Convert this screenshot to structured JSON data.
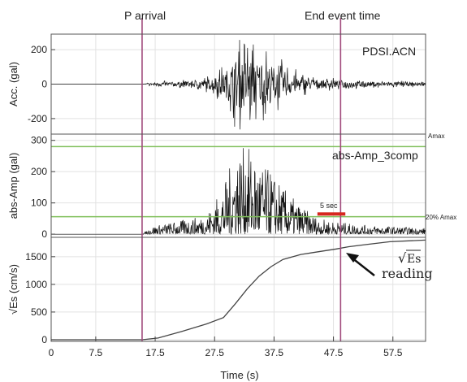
{
  "markers": {
    "p_arrival_label": "P arrival",
    "end_event_label": "End event time"
  },
  "annotations": {
    "station": "PDSI.ACN",
    "component": "abs-Amp_3comp",
    "amax": "Amax",
    "pct_amax": "20% Amax",
    "window": "5 sec",
    "sqrt_symbol": "√",
    "sqrt_es_label": "Es",
    "reading": "reading"
  },
  "chart_data": [
    {
      "type": "line",
      "panel": "acceleration",
      "ylabel": "Acc. (gal)",
      "ylim": [
        -290,
        290
      ],
      "yticks": [
        -200,
        0,
        200
      ],
      "xlim": [
        0,
        63
      ],
      "marker_lines_x": [
        15.3,
        48.7
      ],
      "series": [
        {
          "envelope": [
            [
              0,
              0
            ],
            [
              15.3,
              0
            ],
            [
              17,
              15
            ],
            [
              22,
              25
            ],
            [
              26,
              45
            ],
            [
              29,
              110
            ],
            [
              31,
              260
            ],
            [
              33,
              280
            ],
            [
              35,
              230
            ],
            [
              37,
              200
            ],
            [
              39,
              140
            ],
            [
              42,
              70
            ],
            [
              45,
              45
            ],
            [
              48,
              35
            ],
            [
              52,
              28
            ],
            [
              57,
              22
            ],
            [
              63,
              18
            ]
          ]
        }
      ],
      "grid": true
    },
    {
      "type": "line",
      "panel": "absolute amplitude",
      "ylabel": "abs-Amp (gal)",
      "ylim": [
        -10,
        320
      ],
      "yticks": [
        0,
        100,
        200,
        300
      ],
      "xlim": [
        0,
        63
      ],
      "amax_level": 280,
      "pct20_level": 56,
      "window_start": 44.8,
      "window_end": 49.5,
      "series": [
        {
          "envelope": [
            [
              0,
              0
            ],
            [
              15.3,
              0
            ],
            [
              17,
              25
            ],
            [
              22,
              45
            ],
            [
              26,
              60
            ],
            [
              29,
              150
            ],
            [
              31,
              270
            ],
            [
              33,
              280
            ],
            [
              35,
              230
            ],
            [
              37,
              200
            ],
            [
              39,
              150
            ],
            [
              42,
              90
            ],
            [
              45,
              50
            ],
            [
              48,
              40
            ],
            [
              52,
              30
            ],
            [
              57,
              25
            ],
            [
              63,
              20
            ]
          ]
        }
      ],
      "grid": true
    },
    {
      "type": "line",
      "panel": "root energy",
      "xlabel": "Time (s)",
      "ylabel": "√Es (cm/s)",
      "ylim": [
        -30,
        1850
      ],
      "yticks": [
        0,
        500,
        1000,
        1500
      ],
      "xlim": [
        0,
        63
      ],
      "xticks": [
        0,
        7.5,
        17.5,
        27.5,
        37.5,
        47.5,
        57.5
      ],
      "xtick_labels": [
        "0",
        "7.5",
        "17.5",
        "27.5",
        "37.5",
        "47.5",
        "57.5"
      ],
      "series": [
        {
          "points": [
            [
              0,
              0
            ],
            [
              15.3,
              0
            ],
            [
              18,
              30
            ],
            [
              22,
              150
            ],
            [
              26,
              280
            ],
            [
              29,
              400
            ],
            [
              31,
              650
            ],
            [
              33,
              920
            ],
            [
              35,
              1150
            ],
            [
              37,
              1320
            ],
            [
              39,
              1450
            ],
            [
              42,
              1540
            ],
            [
              45,
              1590
            ],
            [
              48,
              1640
            ],
            [
              50,
              1680
            ],
            [
              53,
              1720
            ],
            [
              57,
              1770
            ],
            [
              63,
              1800
            ]
          ]
        }
      ],
      "grid": true
    }
  ]
}
